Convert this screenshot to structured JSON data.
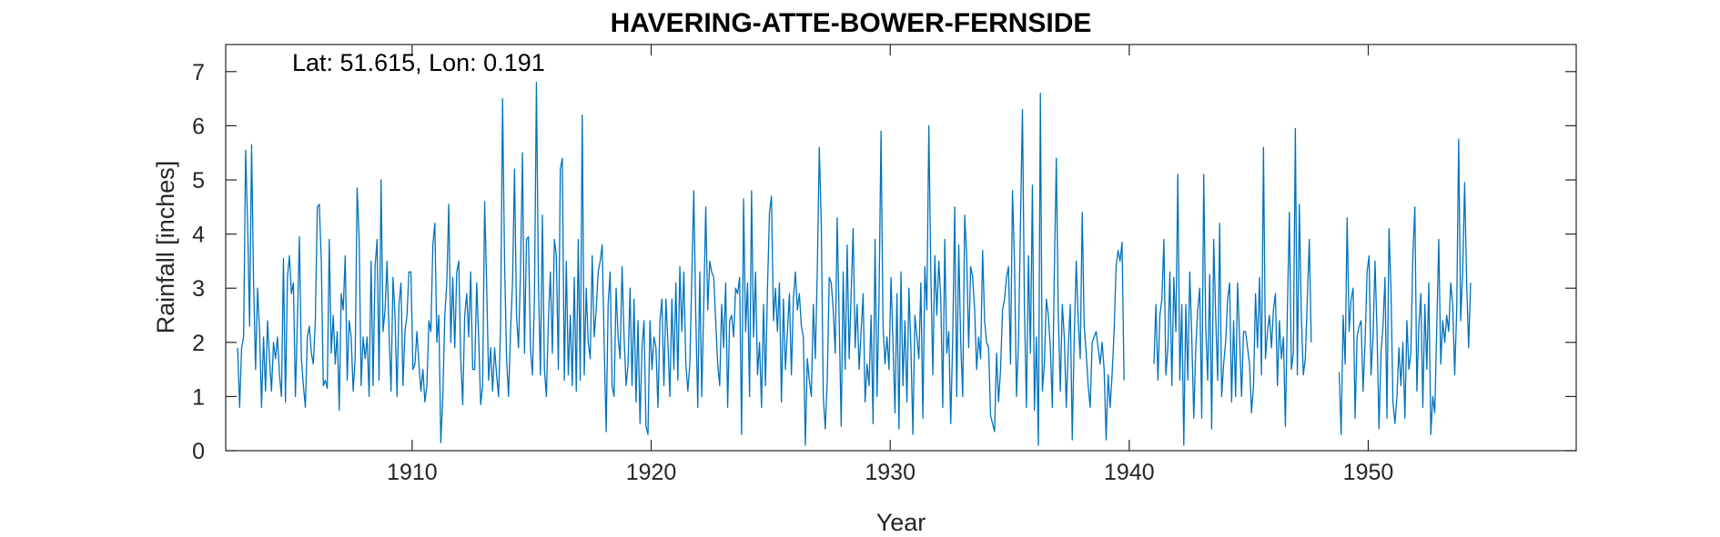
{
  "chart_data": {
    "type": "line",
    "title": "HAVERING-ATTE-BOWER-FERNSIDE",
    "annotation": "Lat: 51.615, Lon: 0.191",
    "xlabel": "Year",
    "ylabel": "Rainfall [inches]",
    "xlim": [
      1902.2,
      1958.7
    ],
    "ylim": [
      0,
      7.5
    ],
    "xticks": [
      1910,
      1920,
      1930,
      1940,
      1950
    ],
    "yticks": [
      0,
      1,
      2,
      3,
      4,
      5,
      6,
      7
    ],
    "grid": false,
    "color": "#0072BD",
    "series": [
      {
        "x_start": 1902.7,
        "step": 0.0833333,
        "values": [
          1.9,
          0.8,
          1.9,
          2.1,
          5.55,
          4.2,
          2.3,
          5.65,
          3.1,
          1.5,
          3.0,
          2.2,
          0.8,
          2.1,
          1.1,
          2.4,
          1.7,
          1.1,
          2.0,
          1.7,
          2.1,
          1.4,
          1.0,
          3.55,
          0.9,
          3.2,
          3.6,
          2.9,
          3.1,
          1.0,
          2.4,
          3.95,
          1.7,
          1.2,
          0.8,
          2.1,
          2.3,
          1.8,
          1.6,
          2.4,
          4.5,
          4.55,
          3.5,
          1.2,
          1.3,
          1.15,
          3.9,
          1.8,
          2.5,
          1.6,
          2.2,
          0.75,
          2.9,
          2.6,
          3.6,
          1.3,
          2.4,
          2.1,
          1.1,
          1.7,
          4.85,
          3.9,
          1.2,
          2.1,
          1.7,
          2.1,
          1.0,
          3.5,
          1.2,
          3.4,
          3.9,
          1.3,
          5.0,
          2.2,
          2.6,
          3.5,
          2.2,
          1.1,
          3.2,
          2.5,
          1.0,
          2.7,
          3.1,
          1.2,
          2.2,
          2.5,
          3.3,
          3.3,
          1.5,
          1.6,
          2.2,
          1.6,
          1.1,
          1.5,
          0.9,
          1.2,
          2.4,
          2.2,
          3.8,
          4.2,
          2.0,
          2.5,
          0.15,
          1.0,
          2.5,
          3.1,
          4.55,
          2.0,
          3.2,
          1.9,
          3.3,
          3.5,
          1.7,
          0.85,
          2.5,
          2.9,
          2.1,
          3.3,
          1.5,
          1.5,
          3.1,
          2.1,
          0.85,
          1.2,
          4.6,
          3.1,
          1.3,
          1.9,
          1.1,
          1.9,
          1.4,
          1.0,
          2.3,
          6.5,
          3.5,
          1.7,
          1.0,
          2.2,
          3.1,
          5.2,
          2.5,
          1.9,
          3.3,
          5.5,
          1.8,
          3.9,
          3.95,
          1.9,
          1.4,
          2.8,
          6.8,
          3.1,
          1.4,
          4.35,
          1.5,
          1.0,
          2.4,
          3.3,
          1.8,
          3.9,
          3.6,
          1.5,
          5.2,
          5.4,
          1.3,
          3.5,
          1.4,
          2.5,
          1.2,
          3.2,
          1.1,
          3.9,
          1.3,
          6.2,
          1.4,
          3.0,
          2.0,
          1.7,
          3.6,
          2.1,
          2.6,
          3.3,
          3.5,
          3.8,
          2.0,
          0.35,
          2.7,
          3.3,
          1.2,
          1.0,
          3.0,
          2.1,
          1.7,
          3.4,
          2.1,
          1.2,
          1.6,
          3.0,
          1.2,
          2.8,
          0.9,
          2.4,
          0.5,
          1.9,
          2.4,
          0.45,
          0.3,
          2.4,
          1.5,
          2.1,
          1.9,
          0.8,
          2.4,
          2.8,
          1.2,
          2.8,
          2.0,
          1.0,
          2.8,
          1.5,
          3.1,
          1.3,
          3.4,
          2.2,
          3.3,
          1.6,
          1.1,
          1.6,
          3.2,
          4.8,
          2.5,
          0.8,
          3.3,
          1.0,
          2.7,
          4.5,
          2.6,
          3.5,
          3.3,
          3.2,
          2.4,
          1.6,
          1.2,
          2.7,
          1.9,
          3.1,
          0.8,
          2.4,
          2.5,
          2.1,
          3.0,
          2.9,
          3.2,
          0.3,
          4.65,
          2.2,
          3.1,
          1.0,
          4.8,
          2.1,
          3.3,
          1.4,
          2.0,
          0.8,
          2.7,
          1.2,
          3.0,
          4.4,
          4.7,
          2.4,
          3.0,
          2.2,
          3.1,
          0.9,
          2.8,
          1.5,
          2.2,
          2.9,
          1.4,
          2.8,
          3.3,
          2.6,
          2.9,
          2.3,
          2.1,
          0.1,
          1.7,
          1.3,
          1.0,
          2.7,
          1.7,
          3.3,
          5.6,
          4.2,
          1.0,
          0.4,
          1.3,
          3.2,
          3.1,
          2.6,
          1.8,
          4.3,
          2.4,
          0.45,
          3.3,
          1.5,
          3.8,
          1.7,
          2.9,
          4.1,
          1.9,
          2.7,
          1.5,
          2.2,
          2.9,
          0.9,
          1.6,
          1.2,
          2.5,
          0.5,
          3.9,
          1.0,
          2.8,
          5.9,
          2.3,
          1.6,
          2.1,
          1.5,
          3.2,
          2.0,
          0.7,
          2.9,
          0.4,
          3.3,
          1.2,
          2.4,
          0.9,
          3.0,
          1.9,
          0.3,
          2.5,
          2.1,
          1.7,
          3.1,
          0.6,
          3.4,
          2.6,
          6.0,
          3.3,
          1.4,
          3.6,
          2.5,
          3.5,
          2.8,
          0.8,
          3.9,
          1.8,
          2.2,
          0.5,
          2.1,
          4.5,
          1.0,
          3.8,
          2.0,
          1.0,
          4.35,
          3.6,
          1.9,
          3.4,
          3.2,
          2.6,
          1.5,
          2.1,
          1.7,
          3.7,
          2.4,
          2.0,
          1.9,
          0.65,
          0.5,
          0.35,
          1.8,
          0.9,
          1.5,
          2.6,
          2.8,
          3.2,
          3.4,
          1.6,
          4.8,
          3.5,
          1.0,
          2.0,
          4.2,
          6.3,
          2.6,
          0.8,
          3.6,
          1.8,
          4.9,
          0.75,
          2.1,
          0.1,
          6.6,
          1.1,
          1.6,
          2.8,
          2.5,
          1.9,
          0.8,
          3.3,
          5.4,
          2.5,
          1.1,
          2.7,
          2.1,
          0.8,
          1.9,
          2.7,
          0.2,
          2.1,
          3.5,
          2.4,
          1.7,
          4.4,
          2.3,
          1.8,
          1.2,
          0.8,
          2.0,
          2.1,
          2.2,
          1.9,
          1.6,
          2.0,
          1.5,
          0.2,
          1.4,
          0.8,
          1.4,
          2.2,
          3.4,
          3.7,
          3.5,
          3.85,
          1.3,
          null,
          null,
          null,
          null,
          null,
          null,
          null,
          null,
          null,
          null,
          null,
          null,
          null,
          null,
          1.6,
          2.7,
          1.3,
          2.5,
          2.8,
          3.9,
          1.4,
          1.9,
          3.3,
          1.2,
          3.2,
          2.2,
          5.1,
          1.3,
          2.7,
          0.1,
          2.7,
          1.3,
          3.3,
          2.1,
          0.6,
          1.9,
          2.6,
          3.0,
          0.6,
          5.1,
          2.3,
          1.3,
          3.25,
          0.4,
          3.9,
          2.5,
          1.3,
          4.2,
          1.0,
          1.6,
          2.0,
          2.8,
          3.1,
          0.9,
          2.4,
          1.0,
          3.1,
          2.1,
          1.0,
          2.2,
          2.2,
          1.9,
          1.6,
          0.7,
          1.2,
          2.9,
          1.9,
          3.2,
          1.4,
          5.6,
          1.7,
          2.2,
          2.5,
          1.9,
          2.6,
          2.9,
          1.2,
          2.4,
          1.7,
          2.1,
          0.45,
          2.6,
          4.4,
          1.5,
          1.8,
          5.95,
          1.4,
          4.55,
          2.5,
          1.4,
          1.7,
          2.8,
          3.9,
          2.0,
          null,
          null,
          null,
          null,
          null,
          null,
          null,
          null,
          null,
          null,
          null,
          null,
          null,
          1.45,
          0.3,
          2.5,
          1.6,
          4.3,
          2.2,
          2.8,
          3.0,
          0.6,
          2.1,
          2.3,
          2.4,
          1.1,
          2.0,
          3.3,
          3.6,
          1.4,
          2.1,
          3.5,
          2.2,
          0.4,
          1.8,
          2.3,
          3.2,
          0.6,
          4.1,
          3.0,
          0.9,
          0.5,
          1.0,
          1.9,
          1.2,
          2.0,
          0.6,
          2.4,
          1.5,
          1.8,
          3.6,
          4.5,
          1.1,
          2.3,
          2.9,
          0.8,
          2.7,
          1.5,
          3.1,
          0.3,
          1.0,
          0.7,
          2.3,
          3.9,
          1.6,
          2.4,
          2.0,
          2.5,
          2.2,
          3.1,
          2.7,
          1.4,
          2.6,
          5.75,
          2.4,
          3.3,
          4.95,
          3.1,
          1.9,
          3.1
        ]
      }
    ]
  }
}
